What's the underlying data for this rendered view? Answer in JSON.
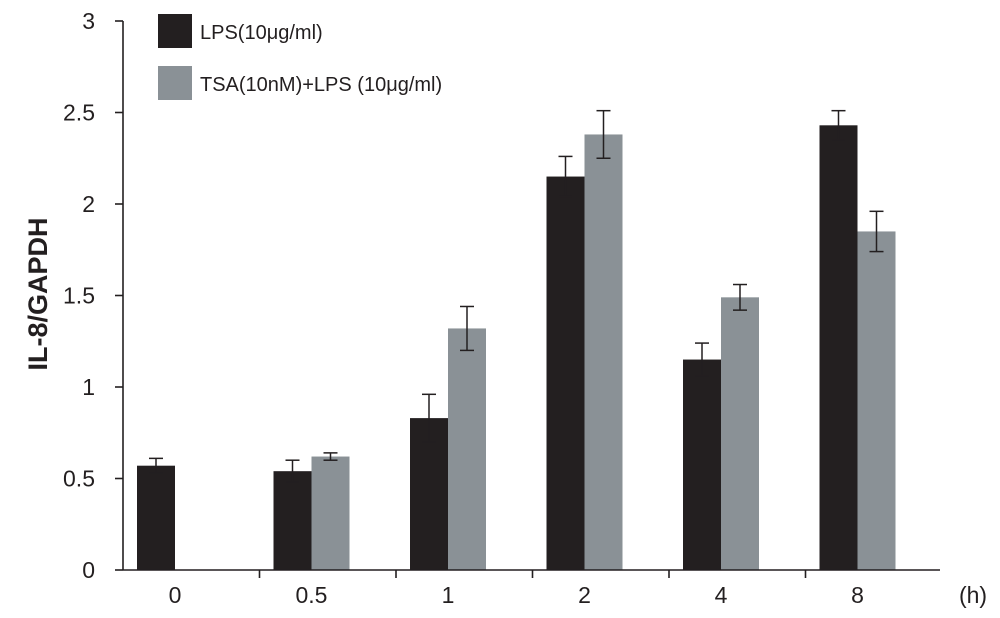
{
  "chart_data": {
    "type": "bar",
    "title": "",
    "xlabel": "",
    "x_unit_label": "(h)",
    "ylabel": "IL-8/GAPDH",
    "ylim": [
      0,
      3
    ],
    "yticks": [
      0,
      0.5,
      1,
      1.5,
      2,
      2.5,
      3
    ],
    "ytick_labels": [
      "0",
      "0.5",
      "1",
      "1.5",
      "2",
      "2.5",
      "3"
    ],
    "categories": [
      "0",
      "0.5",
      "1",
      "2",
      "4",
      "8"
    ],
    "grid": false,
    "legend_position": "top-left",
    "series": [
      {
        "name": "LPS(10μg/ml)",
        "color": "#231f20",
        "values": [
          0.57,
          0.54,
          0.83,
          2.15,
          1.15,
          2.43
        ],
        "errors": [
          0.04,
          0.06,
          0.13,
          0.11,
          0.09,
          0.08
        ]
      },
      {
        "name": "TSA(10nM)+LPS (10μg/ml)",
        "color": "#8a9196",
        "values": [
          null,
          0.62,
          1.32,
          2.38,
          1.49,
          1.85
        ],
        "errors": [
          null,
          0.02,
          0.12,
          0.13,
          0.07,
          0.11
        ]
      }
    ]
  }
}
